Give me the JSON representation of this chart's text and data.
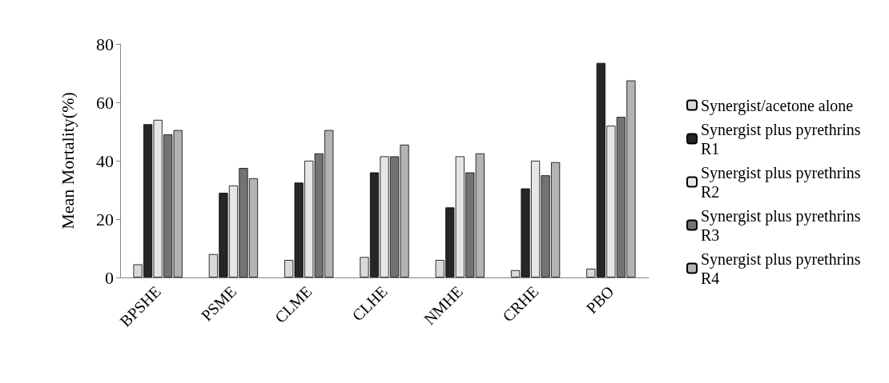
{
  "chart_data": {
    "type": "bar",
    "ylabel": "Mean Mortality(%)",
    "categories": [
      "BPSHE",
      "PSME",
      "CLME",
      "CLHE",
      "NMHE",
      "CRHE",
      "PBO"
    ],
    "series": [
      {
        "name": "Synergist/acetone alone",
        "color": "#d9d9d9",
        "values": [
          4.5,
          8,
          6,
          7,
          6,
          2.5,
          3
        ]
      },
      {
        "name": "Synergist plus pyrethrins R1",
        "color": "#262626",
        "values": [
          52.5,
          29,
          32.5,
          36,
          24,
          30.5,
          73.5
        ]
      },
      {
        "name": "Synergist plus pyrethrins R2",
        "color": "#e6e6e6",
        "values": [
          54,
          31.5,
          40,
          41.5,
          41.5,
          40,
          52
        ]
      },
      {
        "name": "Synergist plus pyrethrins R3",
        "color": "#737373",
        "values": [
          49,
          37.5,
          42.5,
          41.5,
          36,
          35,
          55
        ]
      },
      {
        "name": "Synergist plus pyrethrins R4",
        "color": "#b3b3b3",
        "values": [
          50.5,
          34,
          50.5,
          45.5,
          42.5,
          39.5,
          67.5
        ]
      }
    ],
    "ylim": [
      0,
      80
    ],
    "yticks": [
      0,
      20,
      40,
      60,
      80
    ],
    "grid": false,
    "legend": "right"
  }
}
